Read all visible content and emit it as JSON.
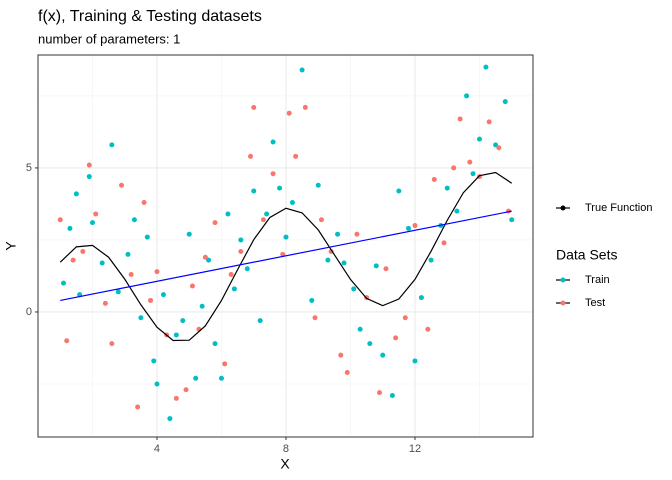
{
  "chart_data": {
    "type": "scatter",
    "title": "f(x), Training & Testing datasets",
    "subtitle": "number of parameters: 1",
    "xlabel": "X",
    "ylabel": "Y",
    "xlim": [
      0.31,
      15.66
    ],
    "ylim": [
      -4.34,
      8.92
    ],
    "xticks": [
      4,
      8,
      12
    ],
    "yticks": [
      0,
      5
    ],
    "xminor": [
      2,
      6,
      10,
      14
    ],
    "yminor": [
      -2.5,
      2.5,
      7.5
    ],
    "grid": true,
    "legend": "right",
    "legend_title": "Data Sets",
    "series": [
      {
        "name": "Train",
        "kind": "points",
        "color": "#00BFC4",
        "x": [
          1.1,
          1.3,
          1.5,
          1.6,
          1.9,
          2.0,
          2.3,
          2.6,
          2.8,
          3.1,
          3.3,
          3.5,
          3.7,
          3.9,
          4.0,
          4.2,
          4.4,
          4.6,
          4.8,
          5.0,
          5.2,
          5.4,
          5.6,
          5.8,
          6.0,
          6.2,
          6.4,
          6.6,
          6.8,
          7.0,
          7.2,
          7.4,
          7.6,
          7.8,
          8.0,
          8.2,
          8.5,
          8.8,
          9.0,
          9.3,
          9.6,
          9.8,
          10.1,
          10.3,
          10.6,
          10.8,
          11.0,
          11.3,
          11.5,
          11.8,
          12.0,
          12.2,
          12.5,
          12.8,
          13.0,
          13.3,
          13.6,
          13.8,
          14.0,
          14.2,
          14.5,
          14.8,
          15.0
        ],
        "values": [
          1.0,
          2.9,
          4.1,
          0.6,
          4.7,
          3.1,
          1.7,
          5.8,
          0.7,
          2.0,
          3.2,
          -0.2,
          2.6,
          -1.7,
          -2.5,
          0.6,
          -3.7,
          -0.8,
          -0.3,
          2.7,
          -2.3,
          0.2,
          1.8,
          -1.1,
          -2.3,
          3.4,
          0.8,
          2.5,
          1.5,
          4.2,
          -0.3,
          3.4,
          5.9,
          4.3,
          2.6,
          3.8,
          8.4,
          0.4,
          4.4,
          1.8,
          2.7,
          1.7,
          0.8,
          -0.6,
          -1.1,
          1.6,
          -1.5,
          -2.9,
          4.2,
          2.9,
          -1.7,
          0.5,
          1.8,
          3.0,
          4.3,
          3.5,
          7.5,
          4.8,
          6.0,
          8.5,
          5.8,
          7.3,
          3.2
        ]
      },
      {
        "name": "Test",
        "kind": "points",
        "color": "#F8766D",
        "x": [
          1.0,
          1.2,
          1.4,
          1.7,
          1.9,
          2.1,
          2.4,
          2.6,
          2.9,
          3.2,
          3.4,
          3.6,
          3.8,
          4.0,
          4.3,
          4.6,
          4.9,
          5.1,
          5.3,
          5.5,
          5.8,
          6.1,
          6.3,
          6.6,
          6.9,
          7.0,
          7.3,
          7.6,
          7.9,
          8.1,
          8.3,
          8.6,
          8.9,
          9.1,
          9.4,
          9.7,
          9.9,
          10.2,
          10.5,
          10.9,
          11.1,
          11.4,
          11.7,
          12.0,
          12.4,
          12.6,
          12.9,
          13.2,
          13.4,
          13.7,
          14.0,
          14.3,
          14.6,
          14.9
        ],
        "values": [
          3.2,
          -1.0,
          1.8,
          2.1,
          5.1,
          3.4,
          0.3,
          -1.1,
          4.4,
          1.3,
          -3.3,
          3.8,
          0.4,
          1.4,
          -0.8,
          -3.0,
          -2.7,
          0.9,
          -0.6,
          1.9,
          3.1,
          -1.8,
          1.3,
          2.1,
          5.4,
          7.1,
          3.2,
          4.8,
          2.0,
          6.9,
          5.4,
          7.1,
          -0.2,
          3.2,
          2.1,
          -1.5,
          -2.1,
          2.7,
          0.5,
          -2.8,
          1.5,
          -0.9,
          -0.2,
          3.0,
          -0.6,
          4.6,
          2.4,
          5.0,
          6.7,
          5.2,
          4.7,
          6.6,
          5.7,
          3.5
        ]
      },
      {
        "name": "True Function",
        "kind": "line",
        "color": "#000000",
        "x": [
          1,
          1.5,
          2,
          2.5,
          3,
          3.5,
          4,
          4.5,
          5,
          5.5,
          6,
          6.5,
          7,
          7.5,
          8,
          8.5,
          9,
          9.5,
          10,
          10.5,
          11,
          11.5,
          12,
          12.5,
          13,
          13.5,
          14,
          14.5,
          15
        ],
        "values": [
          1.73,
          2.26,
          2.31,
          1.9,
          1.14,
          0.25,
          -0.53,
          -0.99,
          -0.98,
          -0.48,
          0.4,
          1.47,
          2.51,
          3.28,
          3.6,
          3.44,
          2.85,
          1.99,
          1.13,
          0.47,
          0.22,
          0.45,
          1.13,
          2.11,
          3.18,
          4.14,
          4.73,
          4.84,
          4.47
        ]
      },
      {
        "kind": "line",
        "color": "#0000FF",
        "x": [
          1,
          15
        ],
        "values": [
          0.4,
          3.5
        ]
      }
    ]
  }
}
